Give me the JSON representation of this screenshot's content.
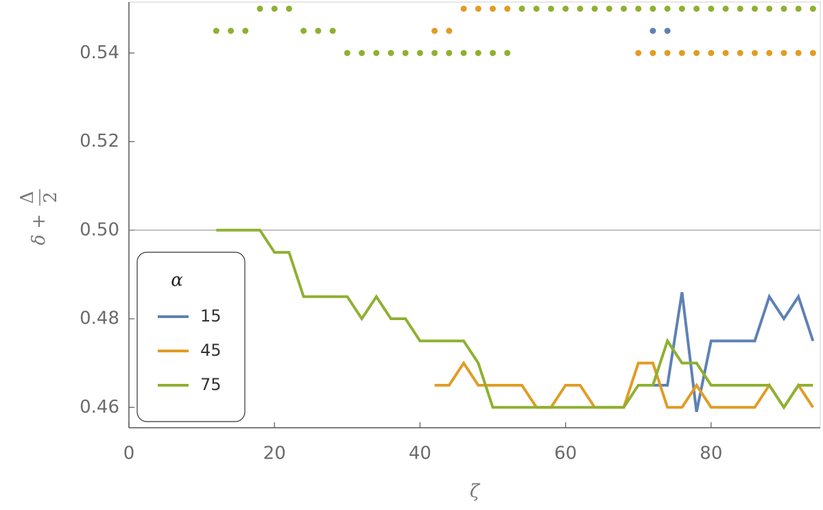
{
  "chart_data": {
    "type": "line",
    "xlabel": "ζ",
    "ylabel": {
      "text": "δ +",
      "numerator": "Δ",
      "denominator": "2"
    },
    "legend_title": "α",
    "legend": "bottom-left",
    "xlim": [
      0,
      95
    ],
    "ylim": [
      0.4554,
      0.5515
    ],
    "xticks": [
      0,
      20,
      40,
      60,
      80
    ],
    "yticks": [
      0.46,
      0.48,
      {
        "value": 0.5,
        "label": "0.50"
      },
      0.52,
      0.54
    ],
    "hline": 0.5,
    "x": [
      12,
      14,
      16,
      18,
      20,
      22,
      24,
      26,
      28,
      30,
      32,
      34,
      36,
      38,
      40,
      42,
      44,
      46,
      48,
      50,
      52,
      54,
      56,
      58,
      60,
      62,
      64,
      66,
      68,
      70,
      72,
      74,
      76,
      78,
      80,
      82,
      84,
      86,
      88,
      90,
      92,
      94
    ],
    "series": [
      {
        "name": "15",
        "color": "#5e81b5",
        "values": [
          null,
          null,
          null,
          null,
          null,
          null,
          null,
          null,
          null,
          null,
          null,
          null,
          null,
          null,
          null,
          null,
          null,
          null,
          null,
          null,
          null,
          null,
          null,
          null,
          null,
          null,
          null,
          null,
          null,
          null,
          0.465,
          0.465,
          0.486,
          0.459,
          0.475,
          0.475,
          0.475,
          0.475,
          0.485,
          0.48,
          0.485,
          0.475
        ],
        "points": {
          "x": [
            72,
            74
          ],
          "y": [
            0.545,
            0.545
          ]
        }
      },
      {
        "name": "45",
        "color": "#e19c24",
        "values": [
          null,
          null,
          null,
          null,
          null,
          null,
          null,
          null,
          null,
          null,
          null,
          null,
          null,
          null,
          null,
          0.465,
          0.465,
          0.47,
          0.465,
          0.465,
          0.465,
          0.465,
          0.46,
          0.46,
          0.465,
          0.465,
          0.46,
          0.46,
          0.46,
          0.47,
          0.47,
          0.46,
          0.46,
          0.465,
          0.46,
          0.46,
          0.46,
          0.46,
          0.465,
          0.46,
          0.465,
          0.46
        ],
        "points": {
          "x": [
            42,
            44,
            46,
            48,
            50,
            52,
            70,
            72,
            74,
            76,
            78,
            80,
            82,
            84,
            86,
            88,
            90,
            92,
            94
          ],
          "y": [
            0.545,
            0.545,
            0.55,
            0.55,
            0.55,
            0.55,
            0.54,
            0.54,
            0.54,
            0.54,
            0.54,
            0.54,
            0.54,
            0.54,
            0.54,
            0.54,
            0.54,
            0.54,
            0.54
          ]
        }
      },
      {
        "name": "75",
        "color": "#8fb032",
        "values": [
          0.5,
          0.5,
          0.5,
          0.5,
          0.495,
          0.495,
          0.485,
          0.485,
          0.485,
          0.485,
          0.48,
          0.485,
          0.48,
          0.48,
          0.475,
          0.475,
          0.475,
          0.475,
          0.47,
          0.46,
          0.46,
          0.46,
          0.46,
          0.46,
          0.46,
          0.46,
          0.46,
          0.46,
          0.46,
          0.465,
          0.465,
          0.475,
          0.47,
          0.47,
          0.465,
          0.465,
          0.465,
          0.465,
          0.465,
          0.46,
          0.465,
          0.465
        ],
        "points": {
          "x": [
            12,
            14,
            16,
            24,
            26,
            28,
            18,
            20,
            22,
            54,
            56,
            58,
            60,
            62,
            64,
            66,
            68,
            70,
            72,
            74,
            76,
            78,
            80,
            82,
            84,
            86,
            88,
            90,
            92,
            94,
            30,
            32,
            34,
            36,
            38,
            40,
            42,
            44,
            46,
            48,
            50,
            52
          ],
          "y": [
            0.545,
            0.545,
            0.545,
            0.545,
            0.545,
            0.545,
            0.55,
            0.55,
            0.55,
            0.55,
            0.55,
            0.55,
            0.55,
            0.55,
            0.55,
            0.55,
            0.55,
            0.55,
            0.55,
            0.55,
            0.55,
            0.55,
            0.55,
            0.55,
            0.55,
            0.55,
            0.55,
            0.55,
            0.55,
            0.55,
            0.54,
            0.54,
            0.54,
            0.54,
            0.54,
            0.54,
            0.54,
            0.54,
            0.54,
            0.54,
            0.54,
            0.54
          ]
        }
      }
    ]
  }
}
